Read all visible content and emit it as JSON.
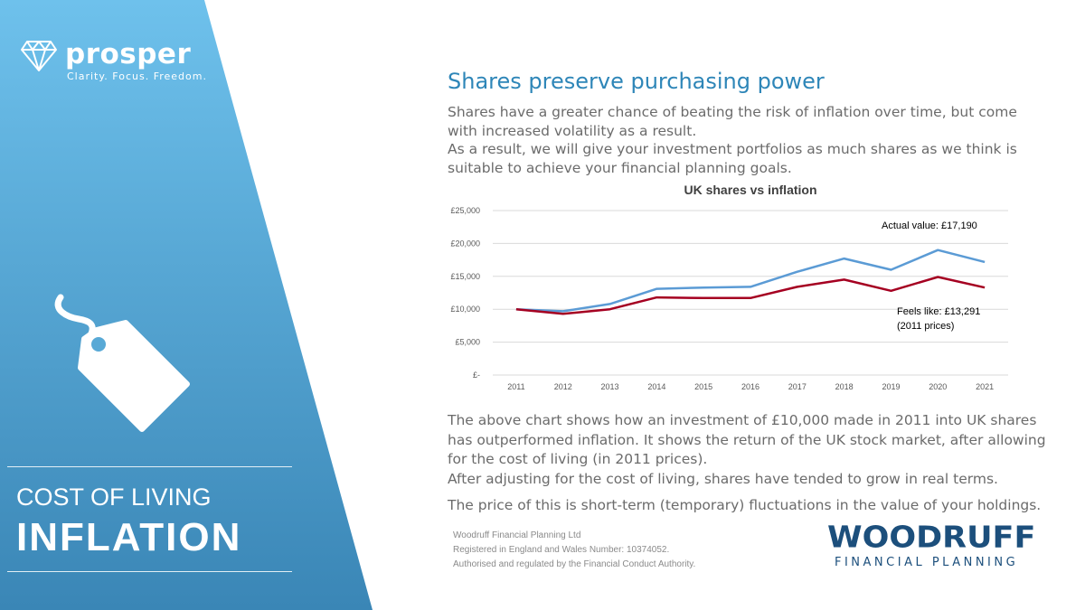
{
  "brand_left": {
    "logo_word": "prosper",
    "logo_tagline": "Clarity. Focus. Freedom.",
    "panel_color_top": "#6ec1ec",
    "panel_color_bottom": "#3a86b6"
  },
  "sidebar": {
    "line1": "COST OF LIVING",
    "line2": "INFLATION"
  },
  "content": {
    "heading": "Shares preserve purchasing power",
    "intro": [
      "Shares have a greater chance of beating the risk of inflation over time, but come with increased volatility as a result.",
      "As a result, we will give your investment portfolios as much shares as we think is suitable to achieve your financial planning goals."
    ],
    "explanation": [
      "The above chart shows how an investment of £10,000 made in 2011 into UK shares has outperformed inflation.  It shows the return of the UK stock market, after allowing for the cost of living (in 2011 prices).",
      "After adjusting for the cost of living, shares have tended to grow in real terms."
    ],
    "closing": "The price of this is short-term (temporary) fluctuations in the value of your holdings."
  },
  "footer": {
    "line1": "Woodruff Financial Planning Ltd",
    "line2": "Registered in England and Wales Number: 10374052.",
    "line3": "Authorised and regulated by the Financial Conduct Authority."
  },
  "brand_right": {
    "name": "WOODRUFF",
    "sub": "FINANCIAL PLANNING"
  },
  "chart_data": {
    "type": "line",
    "title": "UK shares vs inflation",
    "x": [
      "2011",
      "2012",
      "2013",
      "2014",
      "2015",
      "2016",
      "2017",
      "2018",
      "2019",
      "2020",
      "2021"
    ],
    "ylim": [
      0,
      25000
    ],
    "yticks": [
      0,
      5000,
      10000,
      15000,
      20000,
      25000
    ],
    "ytick_labels": [
      "£-",
      "£5,000",
      "£10,000",
      "£15,000",
      "£20,000",
      "£25,000"
    ],
    "grid": true,
    "series": [
      {
        "values": [
          10000,
          9700,
          10800,
          13100,
          13300,
          13400,
          15700,
          17700,
          16000,
          19000,
          17190
        ],
        "color": "#5b9bd5"
      },
      {
        "values": [
          10000,
          9300,
          10000,
          11800,
          11700,
          11700,
          13400,
          14500,
          12800,
          14900,
          13291
        ],
        "color": "#a50021"
      }
    ],
    "annotations": [
      {
        "text": "Actual value: £17,190"
      },
      {
        "text": "Feels like: £13,291"
      },
      {
        "text": "(2011 prices)"
      }
    ]
  }
}
